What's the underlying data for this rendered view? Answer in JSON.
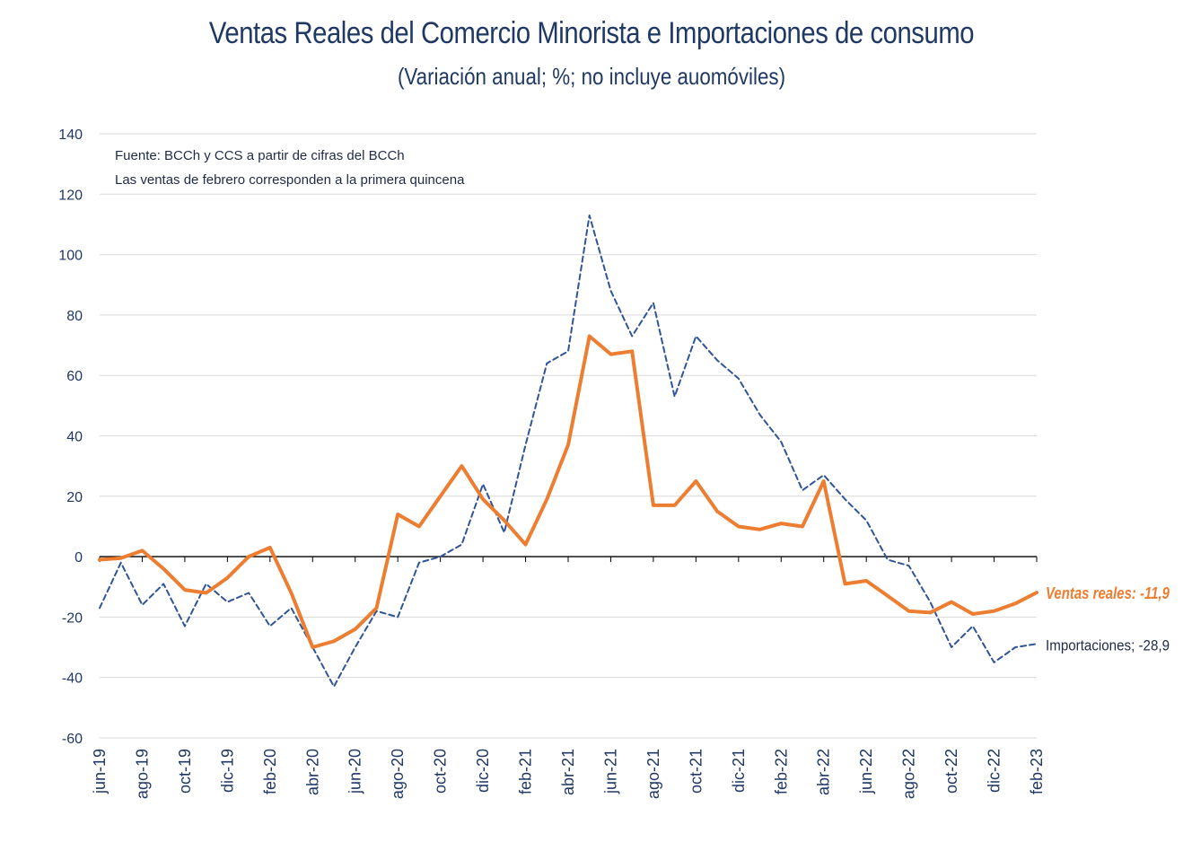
{
  "chart_data": {
    "type": "line",
    "title": "Ventas Reales del Comercio Minorista e Importaciones de consumo",
    "subtitle": "(Variación anual; %; no incluye auomóviles)",
    "notes": [
      "Fuente: BCCh y CCS a partir de cifras del BCCh",
      "Las ventas de febrero corresponden a la primera quincena"
    ],
    "ylim": [
      -60,
      140
    ],
    "yticks": [
      140,
      120,
      100,
      80,
      60,
      40,
      20,
      0,
      -20,
      -40,
      -60
    ],
    "grid": true,
    "xtick_labels": [
      "jun-19",
      "ago-19",
      "oct-19",
      "dic-19",
      "feb-20",
      "abr-20",
      "jun-20",
      "ago-20",
      "oct-20",
      "dic-20",
      "feb-21",
      "abr-21",
      "jun-21",
      "ago-21",
      "oct-21",
      "dic-21",
      "feb-22",
      "abr-22",
      "jun-22",
      "ago-22",
      "oct-22",
      "dic-22",
      "feb-23"
    ],
    "x": [
      "jun-19",
      "jul-19",
      "ago-19",
      "sep-19",
      "oct-19",
      "nov-19",
      "dic-19",
      "ene-20",
      "feb-20",
      "mar-20",
      "abr-20",
      "may-20",
      "jun-20",
      "jul-20",
      "ago-20",
      "sep-20",
      "oct-20",
      "nov-20",
      "dic-20",
      "ene-21",
      "feb-21",
      "mar-21",
      "abr-21",
      "may-21",
      "jun-21",
      "jul-21",
      "ago-21",
      "sep-21",
      "oct-21",
      "nov-21",
      "dic-21",
      "ene-22",
      "feb-22",
      "mar-22",
      "abr-22",
      "may-22",
      "jun-22",
      "jul-22",
      "ago-22",
      "sep-22",
      "oct-22",
      "nov-22",
      "dic-22",
      "ene-23",
      "feb-23"
    ],
    "series": [
      {
        "name": "Ventas reales",
        "end_label": "Ventas reales: -11,9",
        "color": "#ed7d31",
        "style": "solid",
        "values": [
          -1,
          -0.5,
          2,
          -4,
          -11,
          -12,
          -7,
          0,
          3,
          -12,
          -30,
          -28,
          -24,
          -17,
          14,
          10,
          20,
          30,
          19,
          12,
          4,
          19,
          37,
          73,
          67,
          68,
          17,
          17,
          25,
          15,
          10,
          9,
          11,
          10,
          25,
          -9,
          -8,
          -13,
          -18,
          -18.5,
          -15,
          -19,
          -18,
          -15.5,
          -11.9
        ]
      },
      {
        "name": "Importaciones",
        "end_label": "Importaciones; -28,9",
        "color": "#2f5597",
        "style": "dashed",
        "values": [
          -17,
          -2,
          -16,
          -9,
          -23,
          -9,
          -15,
          -12,
          -23,
          -17,
          -30,
          -43,
          -30,
          -18,
          -20,
          -2,
          0,
          4,
          24,
          8,
          37,
          64,
          68,
          113,
          88,
          73,
          84,
          53,
          73,
          65,
          59,
          47,
          38,
          22,
          27,
          19,
          12,
          -1,
          -3,
          -15,
          -30,
          -23,
          -35,
          -30,
          -28.9
        ]
      }
    ]
  }
}
